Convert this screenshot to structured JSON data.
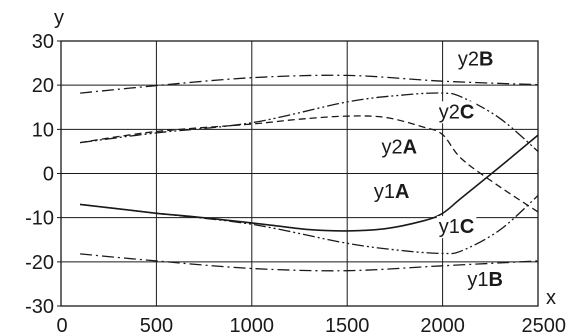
{
  "chart_data": {
    "type": "line",
    "xlabel": "x",
    "ylabel": "y",
    "xlim": [
      0,
      2500
    ],
    "ylim": [
      -30,
      30
    ],
    "xticks": [
      0,
      500,
      1000,
      1500,
      2000,
      2500
    ],
    "yticks": [
      -30,
      -20,
      -10,
      0,
      10,
      20,
      30
    ],
    "grid": true,
    "series": [
      {
        "name": "y1A",
        "label_prefix": "y1",
        "label_suffix": "A",
        "dash": "solid",
        "x": [
          100,
          300,
          500,
          700,
          900,
          1100,
          1300,
          1500,
          1700,
          1900,
          2000,
          2100,
          2300,
          2500
        ],
        "y": [
          -7,
          -8,
          -9,
          -9.8,
          -10.7,
          -11.7,
          -12.7,
          -13,
          -12.5,
          -10.7,
          -9,
          -5.5,
          1.5,
          8.7
        ]
      },
      {
        "name": "y2A",
        "label_prefix": "y2",
        "label_suffix": "A",
        "dash": "dashed",
        "x": [
          100,
          500,
          1000,
          1250,
          1500,
          1700,
          1900,
          2000,
          2100,
          2300,
          2500
        ],
        "y": [
          7,
          9.5,
          11.2,
          12.3,
          13,
          12.7,
          10.5,
          8.8,
          3.3,
          -3,
          -8.7
        ]
      },
      {
        "name": "y1B",
        "label_prefix": "y1",
        "label_suffix": "B",
        "dash": "dash-dot",
        "x": [
          100,
          500,
          1000,
          1500,
          2000,
          2500
        ],
        "y": [
          -18.2,
          -19.8,
          -21.5,
          -22,
          -20.9,
          -19.8
        ]
      },
      {
        "name": "y2B",
        "label_prefix": "y2",
        "label_suffix": "B",
        "dash": "dash-dot",
        "x": [
          100,
          500,
          1000,
          1500,
          2000,
          2500
        ],
        "y": [
          18.2,
          19.9,
          21.7,
          22.2,
          20.9,
          20.1
        ]
      },
      {
        "name": "y1C",
        "label_prefix": "y1",
        "label_suffix": "C",
        "dash": "dash-dot-dot",
        "x": [
          100,
          500,
          1000,
          1500,
          1800,
          2000,
          2100,
          2300,
          2500
        ],
        "y": [
          -7,
          -9,
          -11.5,
          -15.8,
          -17.5,
          -18.1,
          -17.5,
          -12.8,
          -5
        ]
      },
      {
        "name": "y2C",
        "label_prefix": "y2",
        "label_suffix": "C",
        "dash": "dash-dot-dot",
        "x": [
          100,
          500,
          1000,
          1500,
          1800,
          2000,
          2100,
          2300,
          2500
        ],
        "y": [
          7,
          9.2,
          11.5,
          16.2,
          17.8,
          18.2,
          17.3,
          12.5,
          5
        ]
      }
    ]
  }
}
